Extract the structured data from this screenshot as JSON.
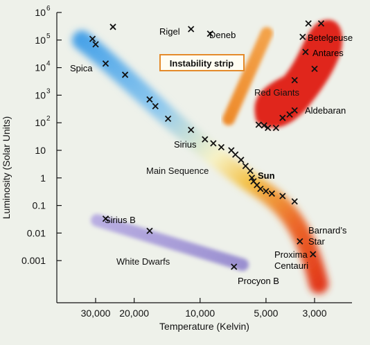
{
  "chart_data": {
    "type": "scatter",
    "title": "",
    "xlabel": "Temperature (Kelvin)",
    "ylabel": "Luminosity (Solar Units)",
    "x_scale": "log",
    "x_reversed": true,
    "y_scale": "log",
    "xlim": [
      40000,
      2300
    ],
    "ylim": [
      5e-05,
      1000000
    ],
    "x_ticks": [
      {
        "value": 30000,
        "label": "30,000"
      },
      {
        "value": 20000,
        "label": "20,000"
      },
      {
        "value": 10000,
        "label": "10,000"
      },
      {
        "value": 5000,
        "label": "5,000"
      },
      {
        "value": 3000,
        "label": "3,000"
      }
    ],
    "y_ticks": [
      {
        "exp": 6,
        "base": "10",
        "sup": "6"
      },
      {
        "exp": 5,
        "base": "10",
        "sup": "5"
      },
      {
        "exp": 4,
        "base": "10",
        "sup": "4"
      },
      {
        "exp": 3,
        "base": "10",
        "sup": "3"
      },
      {
        "exp": 2,
        "base": "10",
        "sup": "2"
      },
      {
        "exp": 1,
        "base": "10",
        "sup": ""
      },
      {
        "exp": 0,
        "base": "1",
        "sup": ""
      },
      {
        "exp": -1,
        "base": "0.1",
        "sup": ""
      },
      {
        "exp": -2,
        "base": "0.01",
        "sup": ""
      },
      {
        "exp": -3,
        "base": "0.001",
        "sup": ""
      }
    ],
    "regions": [
      {
        "label": "Main Sequence",
        "color": "#4aa8e8",
        "label_x": 11000,
        "label_y": 1.6
      },
      {
        "label": "Red Giants",
        "color": "#e0281a",
        "label_x": 4800,
        "label_y": 800
      },
      {
        "label": "White Dwarfs",
        "color": "#a89ad8",
        "label_x": 18000,
        "label_y": 0.0009
      },
      {
        "label": "Instability strip",
        "color": "#f0962a",
        "label_x": 11000,
        "label_y": 12000
      }
    ],
    "stars": [
      {
        "name": "Rigel",
        "T": 11000,
        "L": 250000
      },
      {
        "name": "Deneb",
        "T": 9000,
        "L": 170000
      },
      {
        "name": "Betelgeuse",
        "T": 3400,
        "L": 130000
      },
      {
        "name": "Antares",
        "T": 3400,
        "L": 37000
      },
      {
        "name": "Spica",
        "T": 27000,
        "L": 14000
      },
      {
        "name": "Aldebaran",
        "T": 3600,
        "L": 280
      },
      {
        "name": "Sirius",
        "T": 9500,
        "L": 25
      },
      {
        "name": "Sun",
        "T": 5800,
        "L": 1
      },
      {
        "name": "Sirius B",
        "T": 28000,
        "L": 0.035
      },
      {
        "name": "Barnard's Star",
        "T": 3300,
        "L": 0.005
      },
      {
        "name": "Proxima Centauri",
        "T": 3050,
        "L": 0.0017
      },
      {
        "name": "Procyon B",
        "T": 7000,
        "L": 0.0006
      }
    ],
    "points": [
      {
        "T": 25000,
        "L": 300000
      },
      {
        "T": 11000,
        "L": 250000
      },
      {
        "T": 9000,
        "L": 170000
      },
      {
        "T": 3200,
        "L": 400000
      },
      {
        "T": 2800,
        "L": 400000
      },
      {
        "T": 3400,
        "L": 130000
      },
      {
        "T": 3300,
        "L": 37000
      },
      {
        "T": 3000,
        "L": 9000
      },
      {
        "T": 3700,
        "L": 3500
      },
      {
        "T": 31000,
        "L": 110000
      },
      {
        "T": 30000,
        "L": 70000
      },
      {
        "T": 27000,
        "L": 14000
      },
      {
        "T": 22000,
        "L": 5500
      },
      {
        "T": 17000,
        "L": 700
      },
      {
        "T": 16000,
        "L": 400
      },
      {
        "T": 14000,
        "L": 140
      },
      {
        "T": 11000,
        "L": 55
      },
      {
        "T": 9500,
        "L": 25
      },
      {
        "T": 8700,
        "L": 18
      },
      {
        "T": 8000,
        "L": 13
      },
      {
        "T": 7200,
        "L": 10
      },
      {
        "T": 6900,
        "L": 7
      },
      {
        "T": 6500,
        "L": 4.5
      },
      {
        "T": 6200,
        "L": 2.7
      },
      {
        "T": 5900,
        "L": 1.8
      },
      {
        "T": 5800,
        "L": 1.0
      },
      {
        "T": 5700,
        "L": 0.75
      },
      {
        "T": 5500,
        "L": 0.55
      },
      {
        "T": 5300,
        "L": 0.4
      },
      {
        "T": 5000,
        "L": 0.33
      },
      {
        "T": 4700,
        "L": 0.27
      },
      {
        "T": 4200,
        "L": 0.22
      },
      {
        "T": 3700,
        "L": 0.14
      },
      {
        "T": 5400,
        "L": 85
      },
      {
        "T": 5100,
        "L": 80
      },
      {
        "T": 4900,
        "L": 65
      },
      {
        "T": 4500,
        "L": 65
      },
      {
        "T": 4200,
        "L": 150
      },
      {
        "T": 3900,
        "L": 200
      },
      {
        "T": 3700,
        "L": 280
      },
      {
        "T": 27000,
        "L": 0.033
      },
      {
        "T": 17000,
        "L": 0.012
      },
      {
        "T": 3500,
        "L": 0.005
      },
      {
        "T": 3050,
        "L": 0.0017
      },
      {
        "T": 7000,
        "L": 0.0006
      }
    ]
  }
}
